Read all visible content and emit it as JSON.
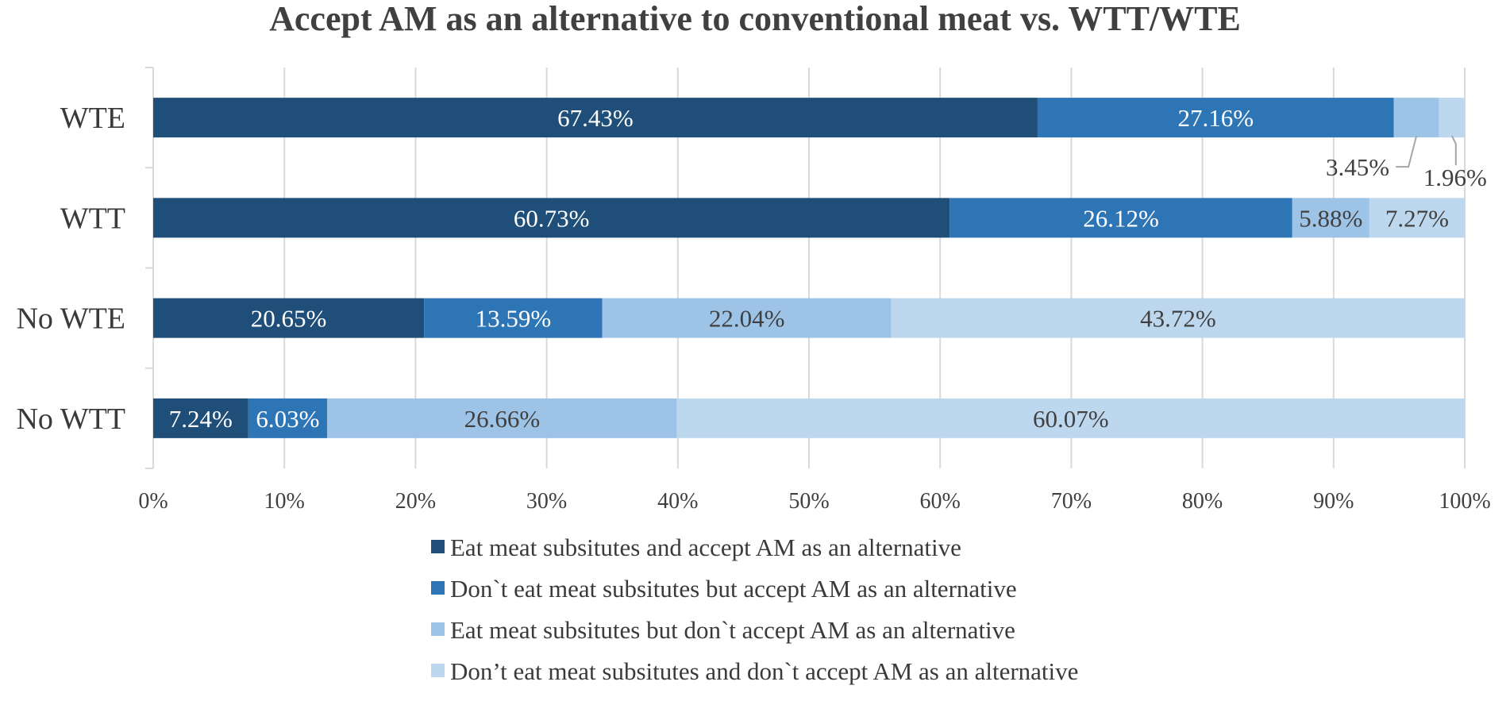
{
  "chart_data": {
    "type": "bar",
    "orientation": "horizontal",
    "stacked": "percent",
    "title": "Accept AM as an alternative to conventional meat vs. WTT/WTE",
    "xlabel": "",
    "ylabel": "",
    "xlim": [
      0,
      100
    ],
    "x_ticks": [
      "0%",
      "10%",
      "20%",
      "30%",
      "40%",
      "50%",
      "60%",
      "70%",
      "80%",
      "90%",
      "100%"
    ],
    "categories": [
      "WTE",
      "WTT",
      "No WTE",
      "No WTT"
    ],
    "series": [
      {
        "name": "Eat meat subsitutes and accept AM as an alternative",
        "color": "#1f4e79",
        "values": [
          67.43,
          60.73,
          20.65,
          7.24
        ],
        "labels": [
          "67.43%",
          "60.73%",
          "20.65%",
          "7.24%"
        ]
      },
      {
        "name": "Don`t eat meat subsitutes but accept AM as an alternative",
        "color": "#2e75b6",
        "values": [
          27.16,
          26.12,
          13.59,
          6.03
        ],
        "labels": [
          "27.16%",
          "26.12%",
          "13.59%",
          "6.03%"
        ]
      },
      {
        "name": "Eat meat subsitutes but don`t accept AM as an alternative",
        "color": "#9dc3e6",
        "values": [
          3.45,
          5.88,
          22.04,
          26.66
        ],
        "labels": [
          "3.45%",
          "5.88%",
          "22.04%",
          "26.66%"
        ]
      },
      {
        "name": "Don’t eat meat subsitutes and don`t accept AM as an alternative",
        "color": "#bdd7ee",
        "values": [
          1.96,
          7.27,
          43.72,
          60.07
        ],
        "labels": [
          "1.96%",
          "7.27%",
          "43.72%",
          "60.07%"
        ]
      }
    ],
    "grid": true,
    "legend": "bottom-center"
  }
}
